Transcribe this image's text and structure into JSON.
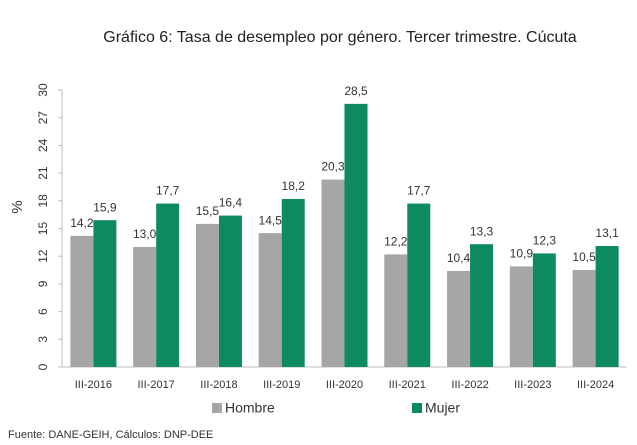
{
  "chart_data": {
    "type": "bar",
    "title": "Gráfico 6: Tasa de desempleo por género. Tercer trimestre. Cúcuta",
    "ylabel": "%",
    "categories": [
      "III-2016",
      "III-2017",
      "III-2018",
      "III-2019",
      "III-2020",
      "III-2021",
      "III-2022",
      "III-2023",
      "III-2024"
    ],
    "series": [
      {
        "name": "Hombre",
        "color": "#a6a6a6",
        "values": [
          14.2,
          13.0,
          15.5,
          14.5,
          20.3,
          12.2,
          10.4,
          10.9,
          10.5
        ],
        "value_labels": [
          "14,2",
          "13,0",
          "15,5",
          "14,5",
          "20,3",
          "12,2",
          "10,4",
          "10,9",
          "10,5"
        ]
      },
      {
        "name": "Mujer",
        "color": "#0e8a5f",
        "values": [
          15.9,
          17.7,
          16.4,
          18.2,
          28.5,
          17.7,
          13.3,
          12.3,
          13.1
        ],
        "value_labels": [
          "15,9",
          "17,7",
          "16,4",
          "18,2",
          "28,5",
          "17,7",
          "13,3",
          "12,3",
          "13,1"
        ]
      }
    ],
    "ylim": [
      0,
      30
    ],
    "yticks": [
      0,
      3,
      6,
      9,
      12,
      15,
      18,
      21,
      24,
      27,
      30
    ],
    "grid": false,
    "legend": "bottom",
    "source": "Fuente: DANE-GEIH, Cálculos: DNP-DEE"
  }
}
